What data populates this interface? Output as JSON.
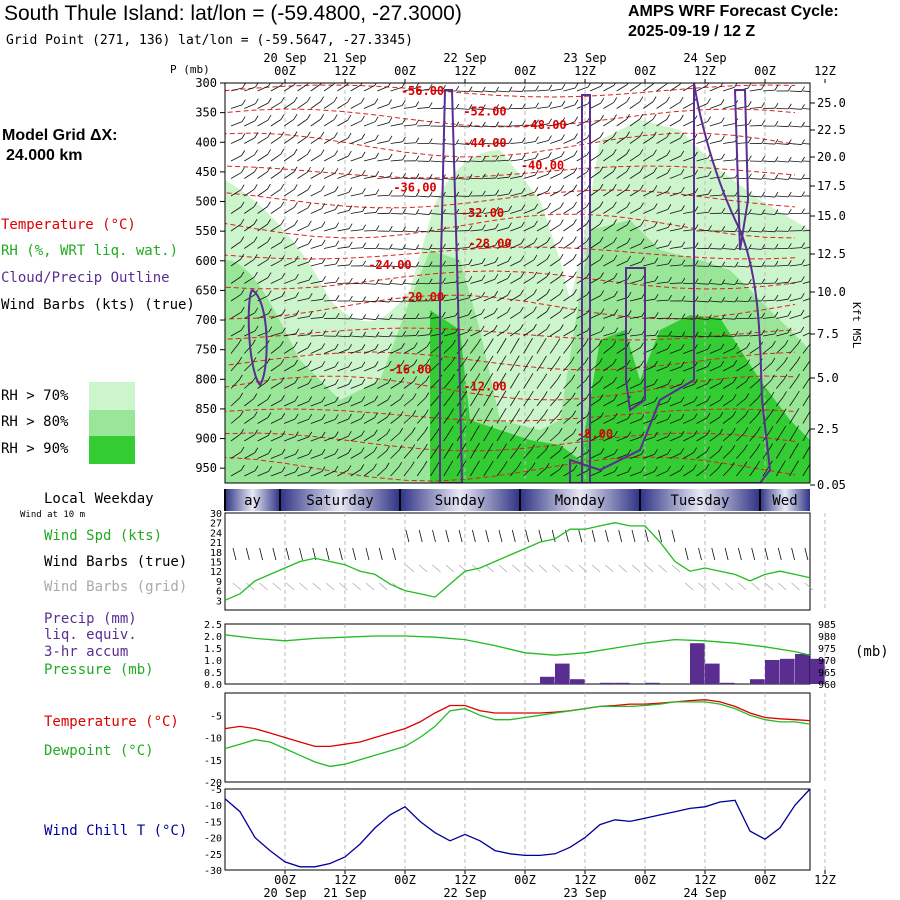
{
  "header": {
    "title": "South Thule Island:  lat/lon = (-59.4800, -27.3000)",
    "subtitle": "Grid Point (271, 136) lat/lon = (-59.5647, -27.3345)",
    "cycle_label": "AMPS WRF Forecast Cycle:",
    "cycle_value": "2025-09-19 / 12  Z"
  },
  "left_labels": {
    "model_grid": "Model Grid ΔX:",
    "grid_spacing": "24.000 km",
    "temperature": "Temperature (°C)",
    "rh": "RH (%, WRT liq. wat.)",
    "cloud": "Cloud/Precip Outline",
    "wind_barbs": "Wind Barbs (kts) (true)",
    "rh_legend": [
      {
        "label": "RH > 70%",
        "color": "#ccf5cc"
      },
      {
        "label": "RH > 80%",
        "color": "#99e699"
      },
      {
        "label": "RH > 90%",
        "color": "#33cc33"
      }
    ],
    "local_weekday": "Local Weekday",
    "wind_at": "Wind at 10 m",
    "wind_spd": "Wind Spd (kts)",
    "wind_barbs_true": "Wind Barbs (true)",
    "wind_barbs_grid": "Wind Barbs (grid)",
    "precip": "Precip (mm)",
    "liq_equiv": "liq. equiv.",
    "accum": "3-hr accum",
    "pressure": "Pressure (mb)",
    "temp2": "Temperature (°C)",
    "dewpoint": "Dewpoint (°C)",
    "wind_chill": "Wind Chill T (°C)",
    "mb_unit": "(mb)"
  },
  "colors": {
    "temperature": "#dd0000",
    "green": "#22bb22",
    "purple": "#5a2d91",
    "blue": "#000099",
    "grey": "#aaaaaa",
    "weekday_band": "#3a3f8f"
  },
  "chart_data": [
    {
      "type": "heatmap",
      "name": "time-height cross section",
      "y_axis_label": "P (mb)",
      "right_axis_label": "Kft MSL",
      "pressure_ticks": [
        300,
        350,
        400,
        450,
        500,
        550,
        600,
        650,
        700,
        750,
        800,
        850,
        900,
        950
      ],
      "kft_ticks": [
        "25.0",
        "22.5",
        "20.0",
        "17.5",
        "15.0",
        "12.5",
        "10.0",
        "7.5",
        "5.0",
        "2.5",
        "0.05"
      ],
      "time_ticks_top": [
        {
          "hour": "00Z",
          "date": "20 Sep",
          "h": 12
        },
        {
          "hour": "12Z",
          "date": "21 Sep",
          "h": 24
        },
        {
          "hour": "00Z",
          "date": "",
          "h": 36
        },
        {
          "hour": "12Z",
          "date": "22 Sep",
          "h": 48
        },
        {
          "hour": "00Z",
          "date": "",
          "h": 60
        },
        {
          "hour": "12Z",
          "date": "23 Sep",
          "h": 72
        },
        {
          "hour": "00Z",
          "date": "",
          "h": 84
        },
        {
          "hour": "12Z",
          "date": "24 Sep",
          "h": 96
        },
        {
          "hour": "00Z",
          "date": "",
          "h": 108
        },
        {
          "hour": "12Z",
          "date": "",
          "h": 120
        }
      ],
      "temperature_labels": [
        {
          "text": "-56.00",
          "h": 39.5,
          "p": 320
        },
        {
          "text": "-52.00",
          "h": 52.0,
          "p": 355
        },
        {
          "text": "-48.00",
          "h": 64.0,
          "p": 378
        },
        {
          "text": "-44.00",
          "h": 52.0,
          "p": 408
        },
        {
          "text": "-40.00",
          "h": 63.5,
          "p": 446
        },
        {
          "text": "-36.00",
          "h": 38.0,
          "p": 483
        },
        {
          "text": "-32.00",
          "h": 51.5,
          "p": 526
        },
        {
          "text": "-28.00",
          "h": 53.0,
          "p": 578
        },
        {
          "text": "-24.00",
          "h": 33.0,
          "p": 614
        },
        {
          "text": "-20.00",
          "h": 39.5,
          "p": 668
        },
        {
          "text": "-16.00",
          "h": 37.0,
          "p": 790
        },
        {
          "text": "-12.00",
          "h": 52.0,
          "p": 819
        },
        {
          "text": "-8.00",
          "h": 74.0,
          "p": 899
        }
      ]
    },
    {
      "type": "line",
      "name": "10 m wind speed",
      "ylabel": "Wind Spd (kts)",
      "y_ticks": [
        3,
        6,
        9,
        12,
        15,
        18,
        21,
        24,
        27,
        30
      ],
      "ylim": [
        0,
        30
      ],
      "x": [
        0,
        3,
        6,
        9,
        12,
        15,
        18,
        21,
        24,
        27,
        30,
        33,
        36,
        39,
        42,
        45,
        48,
        51,
        54,
        57,
        60,
        63,
        66,
        69,
        72,
        75,
        78,
        81,
        84,
        87,
        90,
        93,
        96,
        99,
        102,
        105,
        108,
        111,
        114,
        117
      ],
      "values": [
        3,
        5,
        9,
        11,
        13,
        15,
        16,
        15,
        14,
        12,
        11,
        8,
        6,
        5,
        4,
        8,
        12,
        13,
        15,
        17,
        19,
        21,
        22,
        25,
        25,
        26,
        27,
        26,
        26,
        21,
        15,
        12,
        13,
        12,
        11,
        9,
        11,
        12,
        11,
        10
      ]
    },
    {
      "type": "bar",
      "name": "precipitation",
      "ylabel": "Precip (mm)",
      "y_ticks": [
        0.0,
        0.5,
        1.0,
        1.5,
        2.0,
        2.5
      ],
      "ylim": [
        0,
        2.5
      ],
      "x": [
        0,
        3,
        6,
        9,
        12,
        15,
        18,
        21,
        24,
        27,
        30,
        33,
        36,
        39,
        42,
        45,
        48,
        51,
        54,
        57,
        60,
        63,
        66,
        69,
        72,
        75,
        78,
        81,
        84,
        87,
        90,
        93,
        96,
        99,
        102,
        105,
        108,
        111,
        114,
        117
      ],
      "values": [
        0,
        0,
        0,
        0,
        0,
        0,
        0,
        0,
        0,
        0,
        0,
        0,
        0,
        0,
        0,
        0,
        0,
        0,
        0,
        0,
        0.03,
        0.3,
        0.85,
        0.2,
        0,
        0.05,
        0.05,
        0,
        0.05,
        0,
        0,
        1.7,
        0.85,
        0.05,
        0,
        0.2,
        1.0,
        1.05,
        1.25,
        1.05
      ]
    },
    {
      "type": "line",
      "name": "pressure",
      "ylabel": "Pressure (mb)",
      "y_ticks": [
        960,
        965,
        970,
        975,
        980,
        985
      ],
      "ylim": [
        960,
        985
      ],
      "x": [
        0,
        6,
        12,
        18,
        24,
        30,
        36,
        42,
        48,
        54,
        60,
        66,
        72,
        78,
        84,
        90,
        96,
        102,
        108,
        114,
        117
      ],
      "values": [
        980.5,
        979,
        978,
        979,
        979.5,
        980,
        980,
        979.5,
        978.5,
        976,
        973,
        972,
        973,
        975,
        977,
        978.5,
        978,
        977,
        975.5,
        973.5,
        972
      ]
    },
    {
      "type": "line",
      "name": "temperature and dewpoint",
      "ylabel": "Temperature (°C)",
      "y_ticks": [
        -20,
        -15,
        -10,
        -5
      ],
      "ylim": [
        -20,
        0
      ],
      "x": [
        0,
        3,
        6,
        9,
        12,
        15,
        18,
        21,
        24,
        27,
        30,
        33,
        36,
        39,
        42,
        45,
        48,
        51,
        54,
        57,
        60,
        63,
        66,
        69,
        72,
        75,
        78,
        81,
        84,
        87,
        90,
        93,
        96,
        99,
        102,
        105,
        108,
        111,
        114,
        117
      ],
      "series": [
        {
          "name": "Temperature (°C)",
          "values": [
            -8,
            -7.5,
            -8,
            -9,
            -10,
            -11,
            -12,
            -12,
            -11.5,
            -11,
            -10,
            -9,
            -8,
            -6.5,
            -4.5,
            -2.8,
            -2.8,
            -4,
            -4.5,
            -4.5,
            -4.5,
            -4.5,
            -4.3,
            -4,
            -3.5,
            -3,
            -2.8,
            -2.5,
            -2.5,
            -2.3,
            -2,
            -1.7,
            -1.5,
            -2,
            -3,
            -4.5,
            -5.5,
            -5.8,
            -6,
            -6.2
          ]
        },
        {
          "name": "Dewpoint (°C)",
          "values": [
            -12.5,
            -11.5,
            -10.5,
            -11,
            -12.5,
            -14,
            -15.5,
            -16.5,
            -16,
            -15,
            -14,
            -13,
            -12,
            -10,
            -7.5,
            -4,
            -3.5,
            -5,
            -6,
            -6,
            -5.5,
            -5,
            -4.5,
            -4,
            -3.5,
            -3,
            -3,
            -3,
            -2.8,
            -2.5,
            -2,
            -2,
            -2,
            -2.5,
            -3.5,
            -5,
            -6,
            -6.5,
            -6.5,
            -7
          ]
        }
      ]
    },
    {
      "type": "line",
      "name": "wind chill",
      "ylabel": "Wind Chill T (°C)",
      "y_ticks": [
        -30,
        -25,
        -20,
        -15,
        -10,
        -5
      ],
      "ylim": [
        -30,
        -5
      ],
      "x": [
        0,
        3,
        6,
        9,
        12,
        15,
        18,
        21,
        24,
        27,
        30,
        33,
        36,
        39,
        42,
        45,
        48,
        51,
        54,
        57,
        60,
        63,
        66,
        69,
        72,
        75,
        78,
        81,
        84,
        87,
        90,
        93,
        96,
        99,
        102,
        105,
        108,
        111,
        114,
        117
      ],
      "values": [
        -8,
        -12,
        -20,
        -24,
        -27.5,
        -29,
        -29,
        -28,
        -26,
        -22,
        -17,
        -13,
        -10.5,
        -15,
        -18.5,
        -21,
        -19,
        -21,
        -24,
        -25,
        -25.5,
        -25.5,
        -25,
        -23,
        -20,
        -16,
        -14.5,
        -15,
        -14,
        -13,
        -12,
        -11,
        -10.5,
        -9,
        -8.5,
        -18,
        -20.5,
        -17,
        -10,
        -5
      ]
    }
  ],
  "weekday_band": [
    "ay",
    "Saturday",
    "Sunday",
    "Monday",
    "Tuesday",
    "Wed"
  ],
  "time_ticks_bottom": [
    {
      "hour": "00Z",
      "date": "20 Sep"
    },
    {
      "hour": "12Z",
      "date": "21 Sep"
    },
    {
      "hour": "00Z",
      "date": ""
    },
    {
      "hour": "12Z",
      "date": "22 Sep"
    },
    {
      "hour": "00Z",
      "date": ""
    },
    {
      "hour": "12Z",
      "date": "23 Sep"
    },
    {
      "hour": "00Z",
      "date": ""
    },
    {
      "hour": "12Z",
      "date": "24 Sep"
    },
    {
      "hour": "00Z",
      "date": ""
    },
    {
      "hour": "12Z",
      "date": ""
    }
  ]
}
